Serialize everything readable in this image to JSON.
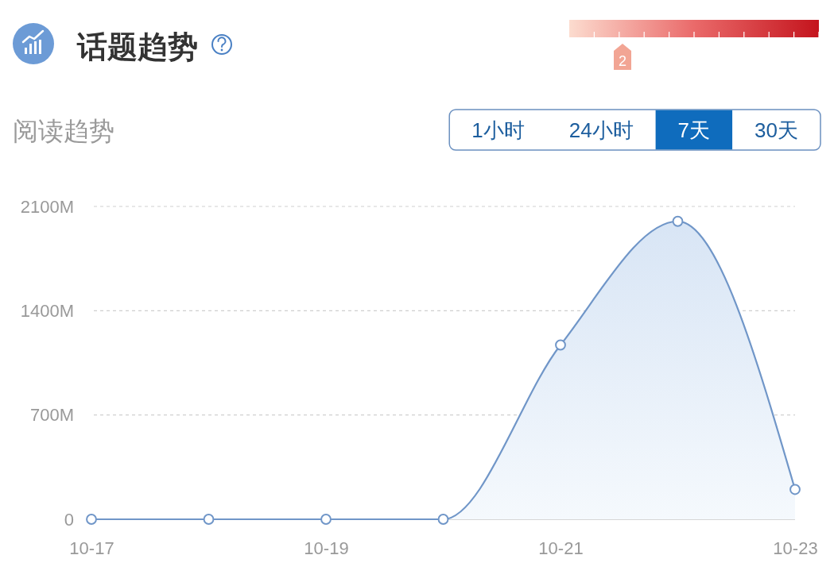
{
  "chart_data": {
    "type": "area",
    "title": "话题趋势",
    "subtitle": "阅读趋势",
    "categories": [
      "10-17",
      null,
      "10-19",
      null,
      "10-21",
      null,
      "10-23"
    ],
    "series": [
      {
        "color": "#7096c8",
        "values": [
          0,
          0,
          0,
          0,
          1170,
          2000,
          200
        ]
      }
    ],
    "ylim": [
      0,
      2100
    ],
    "yticks": [
      {
        "value": 0,
        "label": "0"
      },
      {
        "value": 700,
        "label": "700M"
      },
      {
        "value": 1400,
        "label": "1400M"
      },
      {
        "value": 2100,
        "label": "2100M"
      }
    ],
    "grid": "y",
    "marker": "circle",
    "annotations": [
      "1小时",
      "24小时",
      "7天",
      "30天",
      "2"
    ]
  }
}
